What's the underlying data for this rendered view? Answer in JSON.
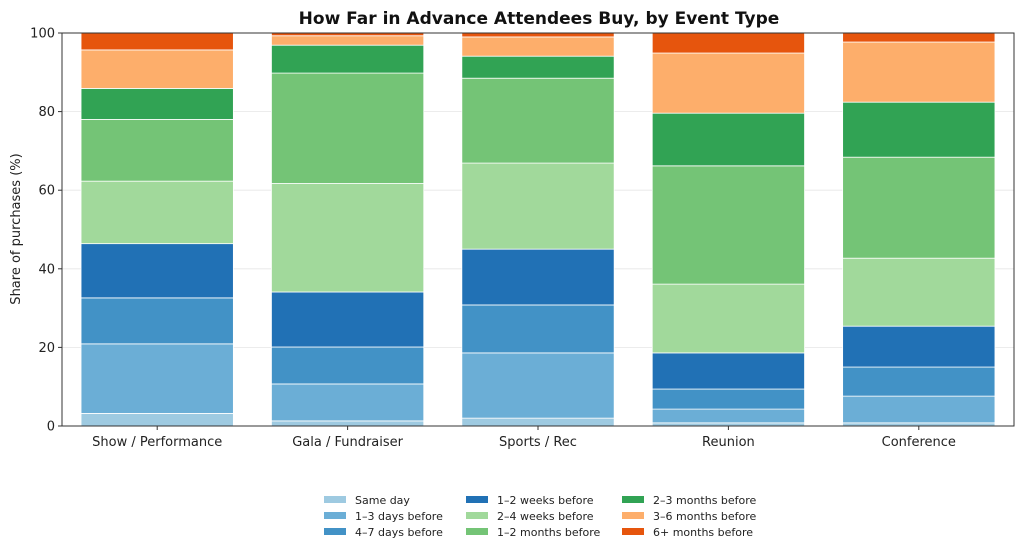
{
  "chart_data": {
    "type": "bar",
    "stacked": true,
    "title": "How Far in Advance Attendees Buy, by Event Type",
    "xlabel": "",
    "ylabel": "Share of purchases (%)",
    "ylim": [
      0,
      100
    ],
    "yticks": [
      0,
      20,
      40,
      60,
      80,
      100
    ],
    "grid": true,
    "legend_position": "bottom-center",
    "categories": [
      "Show / Performance",
      "Gala / Fundraiser",
      "Sports / Rec",
      "Reunion",
      "Conference"
    ],
    "series": [
      {
        "name": "Same day",
        "color": "#9ecae1",
        "values": [
          3.2,
          1.3,
          2.0,
          0.8,
          0.8
        ]
      },
      {
        "name": "1–3 days before",
        "color": "#6baed6",
        "values": [
          17.7,
          9.4,
          16.6,
          3.5,
          6.8
        ]
      },
      {
        "name": "4–7 days before",
        "color": "#4292c6",
        "values": [
          11.7,
          9.4,
          12.2,
          5.1,
          7.4
        ]
      },
      {
        "name": "1–2 weeks before",
        "color": "#2171b5",
        "values": [
          13.8,
          14.0,
          14.2,
          9.2,
          10.4
        ]
      },
      {
        "name": "2–4 weeks before",
        "color": "#a1d99b",
        "values": [
          15.9,
          27.6,
          21.9,
          17.5,
          17.3
        ]
      },
      {
        "name": "1–2 months before",
        "color": "#74c476",
        "values": [
          15.7,
          28.1,
          21.6,
          30.1,
          25.7
        ]
      },
      {
        "name": "2–3 months before",
        "color": "#31a354",
        "values": [
          7.9,
          7.1,
          5.6,
          13.4,
          14.0
        ]
      },
      {
        "name": "3–6 months before",
        "color": "#fdae6b",
        "values": [
          9.8,
          2.4,
          4.9,
          15.3,
          15.3
        ]
      },
      {
        "name": "6+ months before",
        "color": "#e6550d",
        "values": [
          4.3,
          0.7,
          1.0,
          5.1,
          2.3
        ]
      }
    ]
  }
}
